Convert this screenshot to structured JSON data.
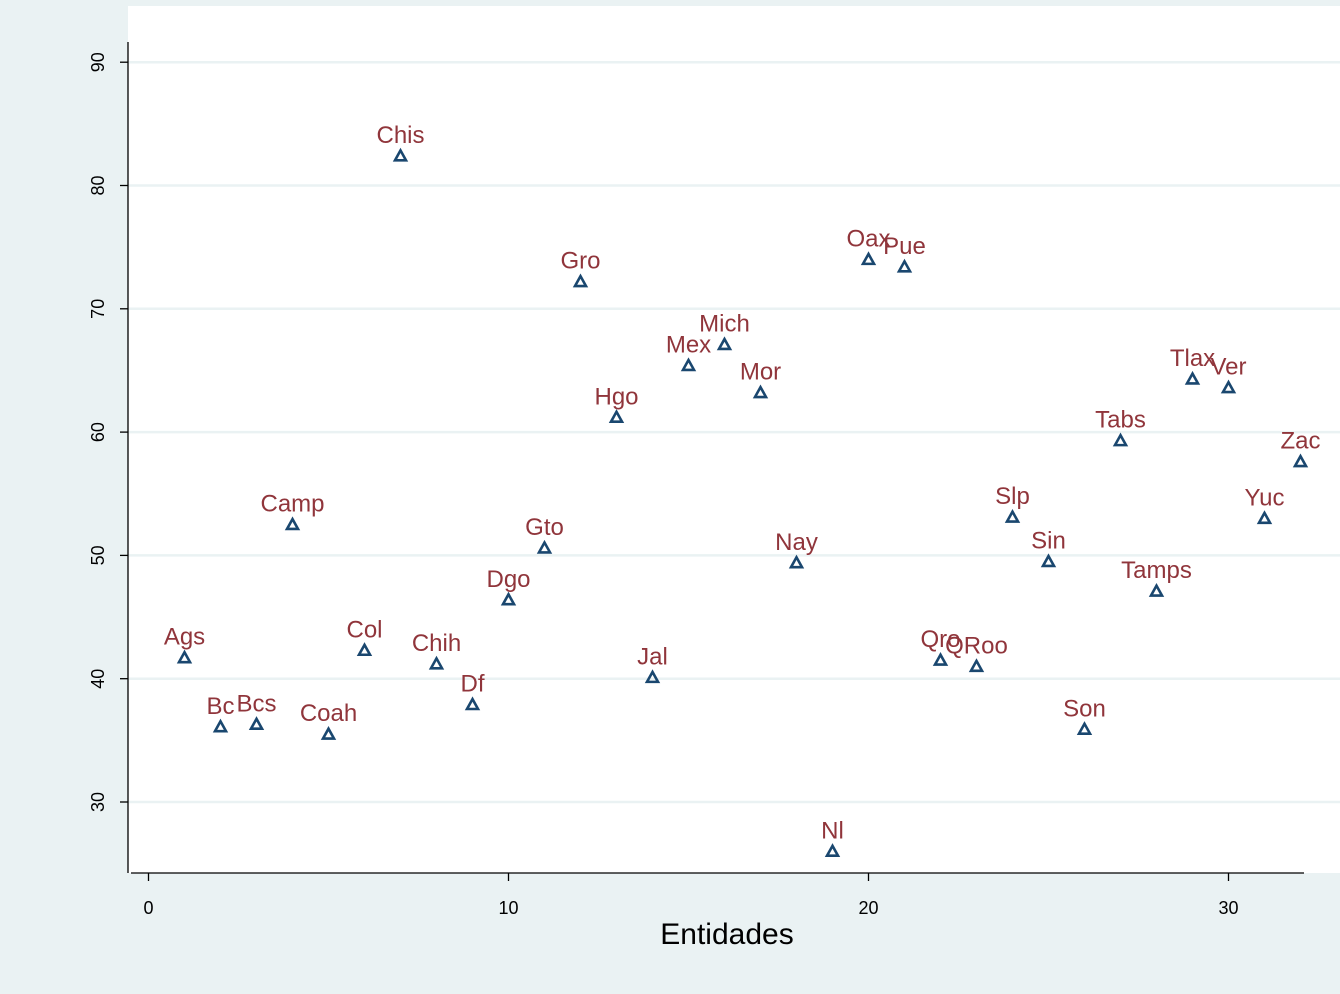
{
  "chart_data": {
    "type": "scatter",
    "title": "",
    "xlabel": "Entidades",
    "ylabel": "",
    "xlim": [
      -0.5,
      32.6
    ],
    "ylim": [
      24.5,
      91.5
    ],
    "xticks": [
      0,
      10,
      20,
      30
    ],
    "yticks": [
      30,
      40,
      50,
      60,
      70,
      80,
      90
    ],
    "grid": true,
    "legend": "none",
    "colors": {
      "background": "#eaf2f3",
      "plot_background": "#ffffff",
      "gridline": "#eaf2f3",
      "marker": "#1a476f",
      "label": "#90353b",
      "axis": "#000000"
    },
    "marker": "hollow-triangle",
    "points": [
      {
        "x": 1,
        "y": 41.7,
        "label": "Ags"
      },
      {
        "x": 2,
        "y": 36.1,
        "label": "Bc"
      },
      {
        "x": 3,
        "y": 36.3,
        "label": "Bcs"
      },
      {
        "x": 4,
        "y": 52.5,
        "label": "Camp"
      },
      {
        "x": 5,
        "y": 35.5,
        "label": "Coah"
      },
      {
        "x": 6,
        "y": 42.3,
        "label": "Col"
      },
      {
        "x": 7,
        "y": 82.4,
        "label": "Chis"
      },
      {
        "x": 8,
        "y": 41.2,
        "label": "Chih"
      },
      {
        "x": 9,
        "y": 37.9,
        "label": "Df"
      },
      {
        "x": 10,
        "y": 46.4,
        "label": "Dgo"
      },
      {
        "x": 11,
        "y": 50.6,
        "label": "Gto"
      },
      {
        "x": 12,
        "y": 72.2,
        "label": "Gro"
      },
      {
        "x": 13,
        "y": 61.2,
        "label": "Hgo"
      },
      {
        "x": 14,
        "y": 40.1,
        "label": "Jal"
      },
      {
        "x": 15,
        "y": 65.4,
        "label": "Mex"
      },
      {
        "x": 16,
        "y": 67.1,
        "label": "Mich"
      },
      {
        "x": 17,
        "y": 63.2,
        "label": "Mor"
      },
      {
        "x": 18,
        "y": 49.4,
        "label": "Nay"
      },
      {
        "x": 19,
        "y": 26.0,
        "label": "Nl"
      },
      {
        "x": 20,
        "y": 74.0,
        "label": "Oax"
      },
      {
        "x": 21,
        "y": 73.4,
        "label": "Pue"
      },
      {
        "x": 22,
        "y": 41.5,
        "label": "Qro"
      },
      {
        "x": 23,
        "y": 41.0,
        "label": "QRoo"
      },
      {
        "x": 24,
        "y": 53.1,
        "label": "Slp"
      },
      {
        "x": 25,
        "y": 49.5,
        "label": "Sin"
      },
      {
        "x": 26,
        "y": 35.9,
        "label": "Son"
      },
      {
        "x": 27,
        "y": 59.3,
        "label": "Tabs"
      },
      {
        "x": 28,
        "y": 47.1,
        "label": "Tamps"
      },
      {
        "x": 29,
        "y": 64.3,
        "label": "Tlax"
      },
      {
        "x": 30,
        "y": 63.6,
        "label": "Ver"
      },
      {
        "x": 31,
        "y": 53.0,
        "label": "Yuc"
      },
      {
        "x": 32,
        "y": 57.6,
        "label": "Zac"
      }
    ]
  }
}
